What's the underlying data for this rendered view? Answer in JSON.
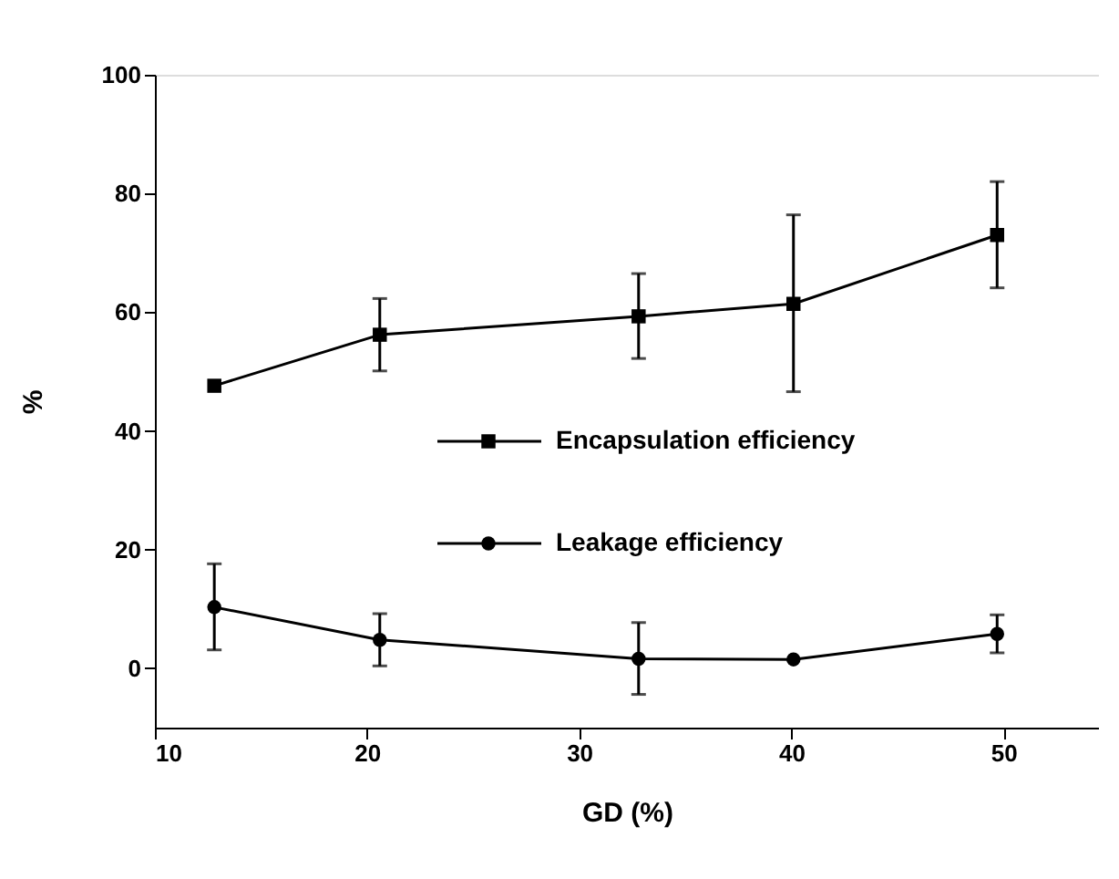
{
  "chart_data": {
    "type": "line",
    "xlabel": "GD (%)",
    "ylabel": "%",
    "x": [
      12.8,
      20.6,
      32.8,
      40.1,
      49.7
    ],
    "series": [
      {
        "name": "Encapsulation efficiency",
        "color": "#000000",
        "marker": "square",
        "values": [
          47.6,
          56.2,
          59.3,
          61.4,
          73.0
        ],
        "errors": [
          null,
          [
            50.1,
            62.3
          ],
          [
            52.2,
            66.5
          ],
          [
            46.6,
            76.4
          ],
          [
            64.1,
            82.0
          ]
        ]
      },
      {
        "name": "Leakage efficiency",
        "color": "#000000",
        "marker": "circle",
        "values": [
          10.3,
          4.8,
          1.6,
          1.5,
          5.8
        ],
        "errors": [
          [
            3.1,
            17.6
          ],
          [
            0.4,
            9.2
          ],
          [
            -4.4,
            7.7
          ],
          null,
          [
            2.6,
            9.0
          ]
        ]
      }
    ],
    "xlim": [
      10,
      54.5
    ],
    "xticks": [
      10,
      20,
      30,
      40,
      50
    ],
    "ylim": [
      -10,
      100
    ],
    "yticks": [
      0,
      20,
      40,
      60,
      80,
      100
    ],
    "grid": false,
    "legend": "center",
    "line_style": "solid"
  }
}
